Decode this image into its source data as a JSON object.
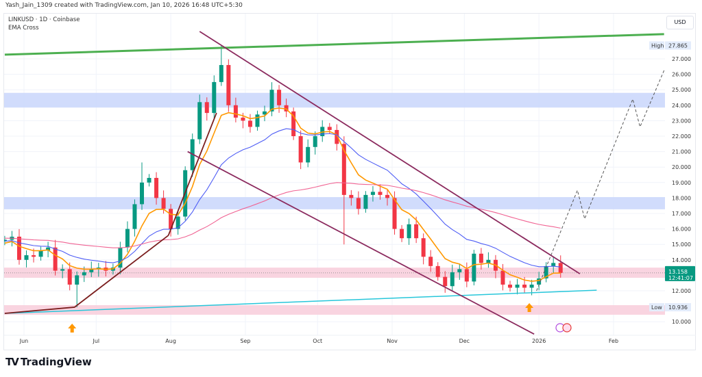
{
  "header": {
    "credit": "Yash_Jain_1309 created with TradingView.com, Jan 10, 2026 16:48 UTC+5:30",
    "symbol": "LINKUSD · 1D · Coinbase",
    "indicator": "EMA Cross",
    "currency_button": "USD"
  },
  "logo": {
    "text": "TradingView",
    "mark": "TV"
  },
  "chart_data": {
    "type": "candlestick",
    "title": "LINKUSD · 1D · Coinbase",
    "ylim": [
      9.5,
      28.5
    ],
    "y_ticks": [
      "10.000",
      "12.000",
      "14.000",
      "15.000",
      "16.000",
      "17.000",
      "18.000",
      "19.000",
      "20.000",
      "21.000",
      "22.000",
      "23.000",
      "24.000",
      "25.000",
      "26.000",
      "27.000"
    ],
    "x_ticks": [
      {
        "label": "Jun",
        "date": "2025-06-01"
      },
      {
        "label": "Jul",
        "date": "2025-07-01"
      },
      {
        "label": "Aug",
        "date": "2025-08-01"
      },
      {
        "label": "Sep",
        "date": "2025-09-01"
      },
      {
        "label": "Oct",
        "date": "2025-10-01"
      },
      {
        "label": "Nov",
        "date": "2025-11-01"
      },
      {
        "label": "Dec",
        "date": "2025-12-01"
      },
      {
        "label": "2026",
        "date": "2026-01-01"
      },
      {
        "label": "Feb",
        "date": "2026-02-01"
      }
    ],
    "grid": true,
    "candles": {
      "start_date": "2025-05-24",
      "interval_days": 3,
      "first_open": 15.2,
      "closes": [
        15.3,
        15.5,
        14.0,
        14.3,
        14.2,
        14.6,
        14.8,
        13.3,
        13.4,
        12.4,
        13.0,
        13.2,
        13.4,
        13.5,
        13.3,
        13.5,
        14.8,
        16.0,
        17.6,
        19.0,
        19.3,
        18.0,
        17.3,
        16.0,
        16.8,
        19.8,
        21.8,
        24.2,
        23.5,
        25.5,
        26.6,
        24.0,
        23.2,
        23.0,
        22.6,
        23.4,
        23.6,
        25.0,
        24.0,
        23.6,
        22.0,
        20.3,
        21.3,
        22.0,
        22.6,
        22.4,
        21.5,
        18.2,
        18.0,
        17.3,
        18.2,
        18.4,
        18.2,
        18.0,
        16.0,
        15.4,
        16.3,
        15.4,
        14.2,
        13.6,
        12.9,
        12.3,
        13.2,
        13.4,
        12.6,
        14.4,
        13.8,
        14.0,
        13.3,
        12.4,
        12.2,
        12.4,
        12.2,
        12.4,
        12.8,
        13.6,
        13.8,
        13.158
      ],
      "wick_extremes": [
        {
          "index": 30,
          "high": 27.865
        },
        {
          "index": 10,
          "low": 10.936
        },
        {
          "index": 47,
          "low": 15.0
        },
        {
          "index": 19,
          "high": 20.3
        }
      ],
      "up_color": "#089981",
      "down_color": "#f23645"
    },
    "ema": [
      {
        "period": 20,
        "color": "#ff9800",
        "seed": 15.0
      },
      {
        "period": 50,
        "color": "#4d5cf5",
        "seed": 15.2
      },
      {
        "period": 200,
        "color": "#f06292",
        "seed": 15.4
      }
    ],
    "last_price": {
      "value": "13.158",
      "countdown": "12:41:07",
      "color": "#089981"
    },
    "high_label": {
      "label": "High",
      "value": "27.865"
    },
    "low_label": {
      "label": "Low",
      "value": "10.936"
    },
    "zones": [
      {
        "low": 23.85,
        "high": 24.8,
        "color": "#c9d6fb"
      },
      {
        "low": 17.27,
        "high": 18.06,
        "color": "#c9d6fb"
      },
      {
        "low": 12.84,
        "high": 13.5,
        "color": "#f8cdda"
      },
      {
        "low": 10.45,
        "high": 11.07,
        "color": "#f8cdda"
      }
    ],
    "trendlines": [
      {
        "name": "resistance-top",
        "color": "#4caf50",
        "width": 3,
        "points": [
          [
            "2025-05-24",
            27.27
          ],
          [
            "2026-02-22",
            28.6
          ]
        ]
      },
      {
        "name": "support-cyan",
        "color": "#26c6da",
        "width": 1.5,
        "points": [
          [
            "2025-05-24",
            10.54
          ],
          [
            "2026-01-25",
            12.04
          ]
        ]
      },
      {
        "name": "rising-base",
        "color": "#7b1e1e",
        "width": 1.8,
        "points": [
          [
            "2025-05-24",
            10.54
          ],
          [
            "2025-06-22",
            10.94
          ],
          [
            "2025-07-31",
            15.58
          ]
        ]
      },
      {
        "name": "rising-steep",
        "color": "#7b1e1e",
        "width": 1.8,
        "points": [
          [
            "2025-07-31",
            15.58
          ],
          [
            "2025-08-20",
            23.5
          ]
        ]
      },
      {
        "name": "channel-upper",
        "color": "#8b2a5e",
        "width": 1.8,
        "points": [
          [
            "2025-08-13",
            28.77
          ],
          [
            "2026-01-18",
            13.1
          ]
        ]
      },
      {
        "name": "channel-lower",
        "color": "#8b2a5e",
        "width": 1.8,
        "points": [
          [
            "2025-08-08",
            21.0
          ],
          [
            "2025-12-30",
            9.2
          ]
        ]
      }
    ],
    "projection": {
      "color": "#555",
      "points": [
        [
          "2025-12-31",
          12.0
        ],
        [
          "2026-01-17",
          18.5
        ],
        [
          "2026-01-20",
          16.65
        ],
        [
          "2026-02-09",
          24.4
        ],
        [
          "2026-02-12",
          22.6
        ],
        [
          "2026-02-22",
          26.25
        ]
      ]
    },
    "signals": [
      {
        "date": "2025-06-21",
        "type": "buy-arrow",
        "color": "#ff9800"
      },
      {
        "date": "2025-12-28",
        "type": "buy-arrow",
        "color": "#ff9800"
      }
    ]
  }
}
